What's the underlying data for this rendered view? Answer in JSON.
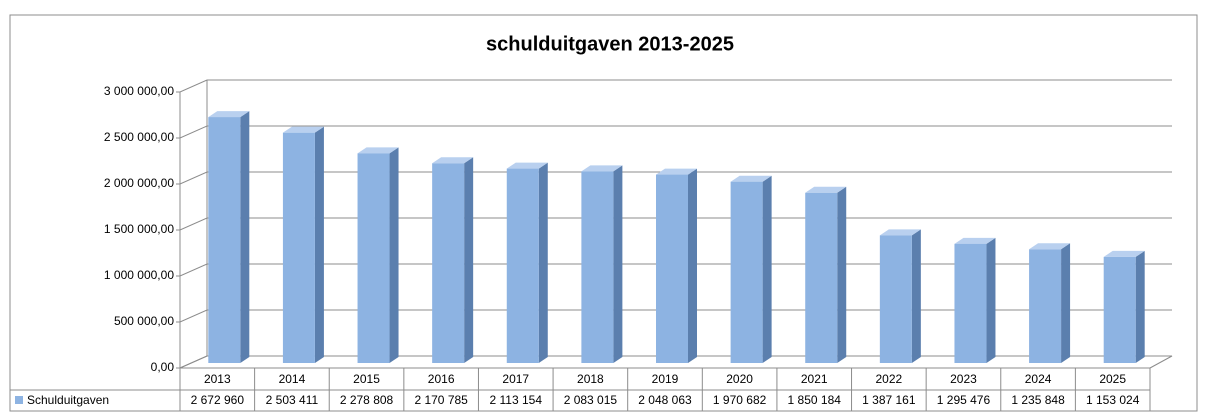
{
  "chart_data": {
    "type": "bar3d",
    "title": "schulduitgaven 2013-2025",
    "categories": [
      "2013",
      "2014",
      "2015",
      "2016",
      "2017",
      "2018",
      "2019",
      "2020",
      "2021",
      "2022",
      "2023",
      "2024",
      "2025"
    ],
    "series": [
      {
        "name": "Schulduitgaven",
        "color": "#8db3e2",
        "values": [
          2672960,
          2503411,
          2278808,
          2170785,
          2113154,
          2083015,
          2048063,
          1970682,
          1850184,
          1387161,
          1295476,
          1235848,
          1153024
        ],
        "value_labels": [
          "2 672 960",
          "2 503 411",
          "2 278 808",
          "2 170 785",
          "2 113 154",
          "2 083 015",
          "2 048 063",
          "1 970 682",
          "1 850 184",
          "1 387 161",
          "1 295 476",
          "1 235 848",
          "1 153 024"
        ]
      }
    ],
    "ylim": [
      0,
      3000000
    ],
    "yticks": [
      {
        "value": 0,
        "label": "0,00"
      },
      {
        "value": 500000,
        "label": "500 000,00"
      },
      {
        "value": 1000000,
        "label": "1 000 000,00"
      },
      {
        "value": 1500000,
        "label": "1 500 000,00"
      },
      {
        "value": 2000000,
        "label": "2 000 000,00"
      },
      {
        "value": 2500000,
        "label": "2 500 000,00"
      },
      {
        "value": 3000000,
        "label": "3 000 000,00"
      }
    ],
    "grid": true
  }
}
